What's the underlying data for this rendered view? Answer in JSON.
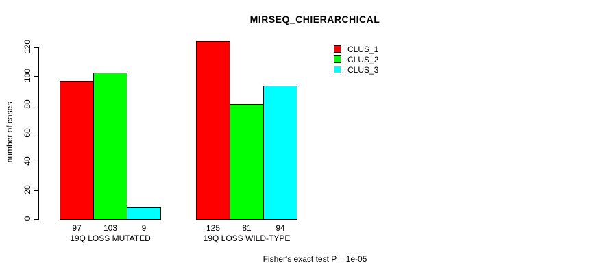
{
  "chart_data": {
    "type": "bar",
    "title": "MIRSEQ_CHIERARCHICAL",
    "ylabel": "number of cases",
    "xlabel": "",
    "yticks": [
      0,
      20,
      40,
      60,
      80,
      100,
      120
    ],
    "ylim": [
      0,
      125
    ],
    "grid": false,
    "legend_position": "top-right-inside",
    "categories": [
      "19Q LOSS MUTATED",
      "19Q LOSS WILD-TYPE"
    ],
    "groups": [
      {
        "label": "19Q LOSS MUTATED",
        "values": [
          97,
          103,
          9
        ]
      },
      {
        "label": "19Q LOSS WILD-TYPE",
        "values": [
          125,
          81,
          94
        ]
      }
    ],
    "series": [
      {
        "name": "CLUS_1",
        "color": "#FF0000",
        "values": [
          97,
          125
        ]
      },
      {
        "name": "CLUS_2",
        "color": "#00FF00",
        "values": [
          103,
          81
        ]
      },
      {
        "name": "CLUS_3",
        "color": "#00FFFF",
        "values": [
          9,
          94
        ]
      }
    ],
    "bar_value_labels": [
      [
        "97",
        "103",
        "9"
      ],
      [
        "125",
        "81",
        "94"
      ]
    ],
    "footer": "Fisher's exact test P = 1e-05",
    "text_color": "#000000",
    "background_color": "#FFFFFF",
    "bar_border_color": "#000000"
  }
}
